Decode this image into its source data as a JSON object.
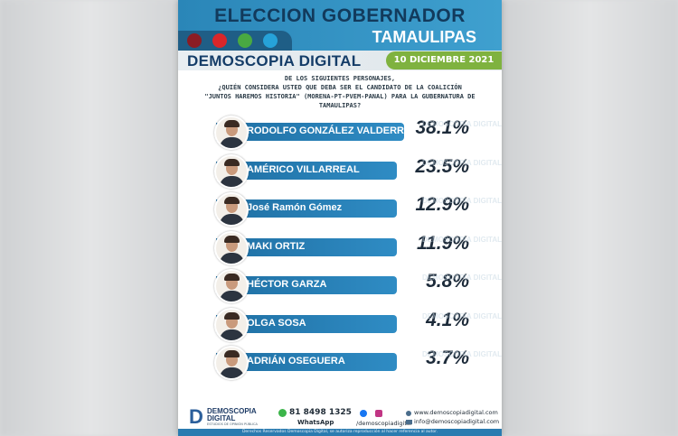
{
  "header": {
    "title": "ELECCION GOBERNADOR",
    "subtitle": "TAMAULIPAS",
    "parties": [
      "morena",
      "PT",
      "PVEM",
      "PANAL"
    ]
  },
  "brand": {
    "name": "DEMOSCOPIA DIGITAL",
    "date": "10 DICIEMBRE 2021"
  },
  "question": {
    "line1": "DE LOS SIGUIENTES PERSONAJES,",
    "line2": "¿QUIÉN CONSIDERA USTED QUE DEBA SER EL CANDIDATO DE LA COALICIÓN",
    "line3": "\"JUNTOS HAREMOS HISTORIA\" (MORENA-PT-PVEM-PANAL) PARA LA GUBERNATURA DE TAMAULIPAS?"
  },
  "watermark": "DEMOSCOPIA DIGITAL",
  "candidates": [
    {
      "name": "RODOLFO GONZÁLEZ VALDERRAMA",
      "pct": "38.1%",
      "value": 38.1
    },
    {
      "name": "AMÉRICO VILLARREAL",
      "pct": "23.5%",
      "value": 23.5
    },
    {
      "name": "José Ramón Gómez",
      "pct": "12.9%",
      "value": 12.9
    },
    {
      "name": "MAKI ORTIZ",
      "pct": "11.9%",
      "value": 11.9
    },
    {
      "name": "HÉCTOR GARZA",
      "pct": "5.8%",
      "value": 5.8
    },
    {
      "name": "OLGA SOSA",
      "pct": "4.1%",
      "value": 4.1
    },
    {
      "name": "ADRIÁN OSEGUERA",
      "pct": "3.7%",
      "value": 3.7
    }
  ],
  "footer": {
    "brand_line1": "DEMOSCOPIA",
    "brand_line2": "DIGITAL",
    "brand_tag": "ESTUDIOS DE OPINIÓN PÚBLICA",
    "whatsapp_number": "81 8498 1325",
    "whatsapp_label": "WhatsApp",
    "social_handle": "/demoscopiadigital",
    "website": "www.demoscopiadigital.com",
    "email": "info@demoscopiadigital.com",
    "copyright": "Derechos Reservados Demoscopia Digital, se autoriza reproducción al hacer referencia al autor."
  },
  "colors": {
    "accent_blue": "#2a86b8",
    "bar_blue": "#1f6fa3",
    "date_green": "#7fb23f"
  }
}
